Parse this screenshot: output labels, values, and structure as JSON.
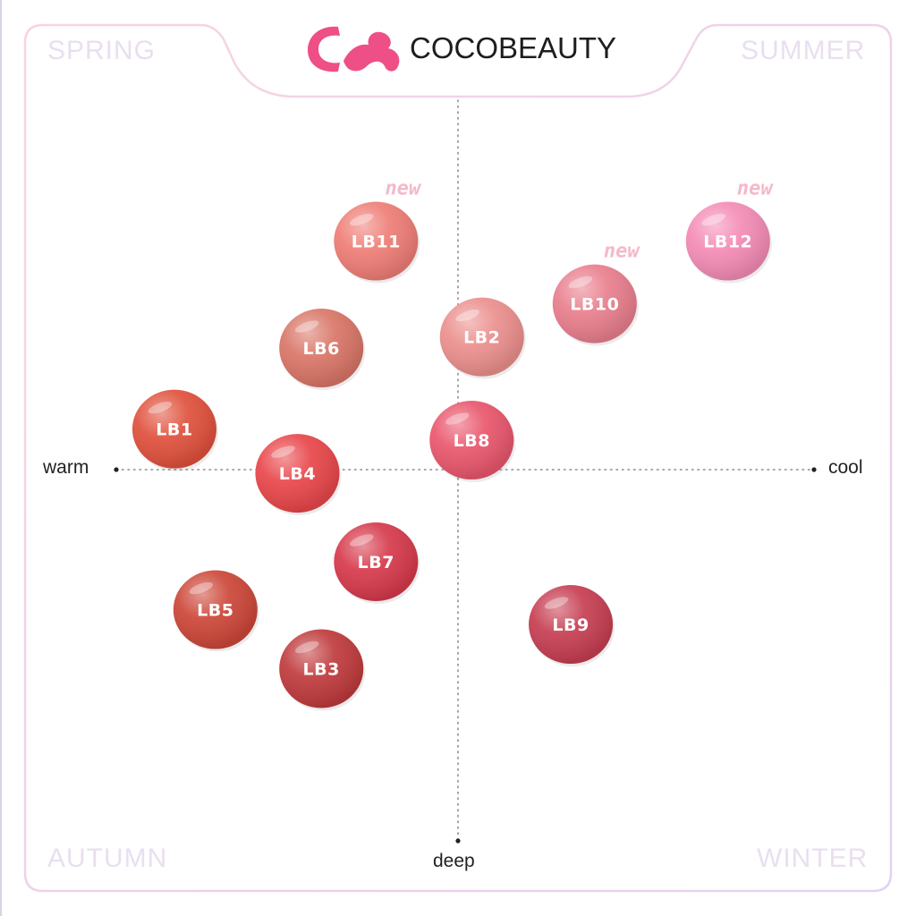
{
  "brand": {
    "name": "COCOBEAUTY",
    "logo_icon": "cocobeauty-logo-icon",
    "logo_color": "#ee4f86"
  },
  "chart_data": {
    "type": "scatter",
    "title": "",
    "xlabel": "",
    "ylabel": "",
    "axes": {
      "left_label": "warm",
      "right_label": "cool",
      "bottom_label": "deep"
    },
    "quadrants": {
      "top_left": "SPRING",
      "top_right": "SUMMER",
      "bottom_left": "AUTUMN",
      "bottom_right": "WINTER"
    },
    "xlim": [
      -1,
      1
    ],
    "ylim": [
      -1,
      1
    ],
    "grid": false,
    "new_badge_text": "new",
    "points": [
      {
        "label": "LB1",
        "x": -0.83,
        "y": 0.11,
        "color": "#e0503c",
        "new": false
      },
      {
        "label": "LB2",
        "x": 0.07,
        "y": 0.36,
        "color": "#eb8f8d",
        "new": false
      },
      {
        "label": "LB3",
        "x": -0.4,
        "y": -0.54,
        "color": "#bf3a3c",
        "new": false
      },
      {
        "label": "LB4",
        "x": -0.47,
        "y": -0.01,
        "color": "#e8464a",
        "new": false
      },
      {
        "label": "LB5",
        "x": -0.71,
        "y": -0.38,
        "color": "#cc4638",
        "new": false
      },
      {
        "label": "LB6",
        "x": -0.4,
        "y": 0.33,
        "color": "#d97567",
        "new": false
      },
      {
        "label": "LB7",
        "x": -0.24,
        "y": -0.25,
        "color": "#d6394b",
        "new": false
      },
      {
        "label": "LB8",
        "x": 0.04,
        "y": 0.08,
        "color": "#e9566c",
        "new": false
      },
      {
        "label": "LB9",
        "x": 0.33,
        "y": -0.42,
        "color": "#c63e51",
        "new": false
      },
      {
        "label": "LB10",
        "x": 0.4,
        "y": 0.45,
        "color": "#e97e8d",
        "new": true
      },
      {
        "label": "LB11",
        "x": -0.24,
        "y": 0.62,
        "color": "#ef7d76",
        "new": true
      },
      {
        "label": "LB12",
        "x": 0.79,
        "y": 0.62,
        "color": "#f48bb6",
        "new": true
      }
    ]
  }
}
